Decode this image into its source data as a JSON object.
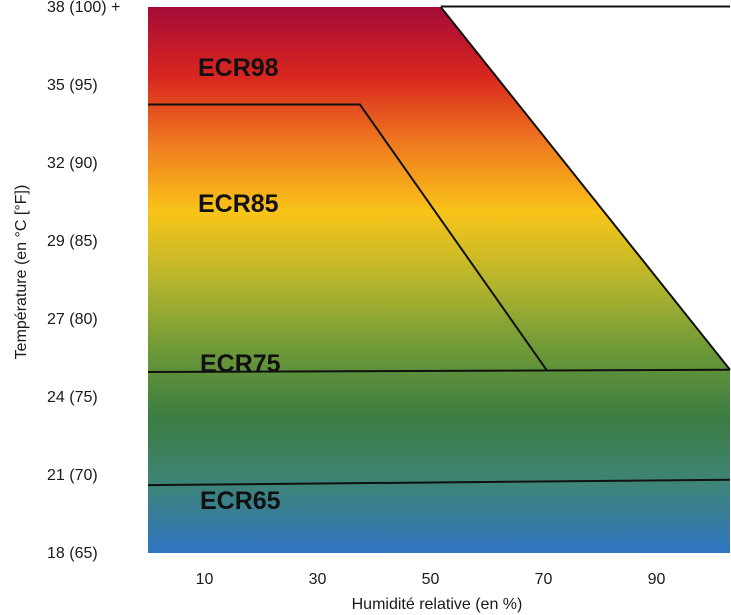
{
  "chart_data": {
    "type": "area",
    "xlabel": "Humidité relative (en %)",
    "ylabel": "Température (en °C [°F])",
    "x_ticks": [
      "10",
      "30",
      "50",
      "70",
      "90"
    ],
    "x_tick_values": [
      10,
      30,
      50,
      70,
      90
    ],
    "y_ticks": [
      "18 (65)",
      "21 (70)",
      "24 (75)",
      "27 (80)",
      "29 (85)",
      "32 (90)",
      "35 (95)",
      "38 (100) +"
    ],
    "xlim": [
      0,
      103
    ],
    "ylim": [
      0,
      7
    ],
    "gradient_colors": [
      "#a50b38",
      "#d8251f",
      "#ef7a1f",
      "#f9c419",
      "#b7b62c",
      "#6f9a38",
      "#3c7d41",
      "#3e8478",
      "#2f74c2"
    ],
    "zones": [
      {
        "label": "ECR98",
        "boundary": [
          [
            0,
            7
          ],
          [
            51.8,
            7
          ],
          [
            103,
            2.35
          ]
        ]
      },
      {
        "label": "ECR85",
        "boundary": [
          [
            0,
            5.75
          ],
          [
            37.5,
            5.75
          ],
          [
            70.5,
            2.35
          ]
        ]
      },
      {
        "label": "ECR75",
        "boundary": [
          [
            0,
            2.32
          ],
          [
            103,
            2.35
          ]
        ]
      },
      {
        "label": "ECR65",
        "boundary": [
          [
            0,
            0.87
          ],
          [
            103,
            0.94
          ]
        ]
      }
    ]
  }
}
